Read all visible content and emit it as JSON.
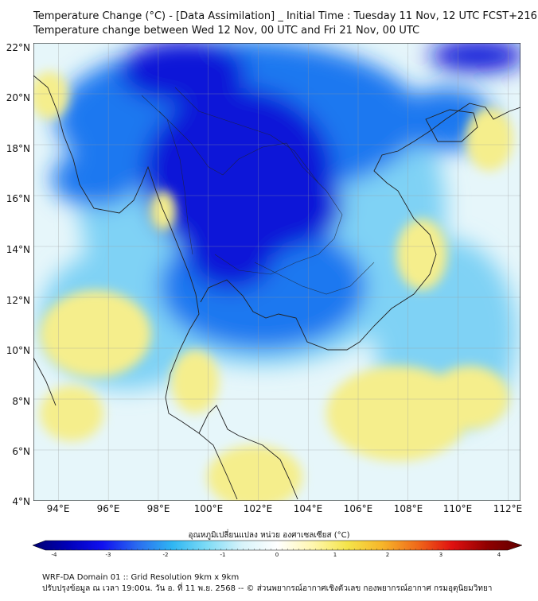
{
  "title": {
    "line1": "Temperature Change (°C) - [Data Assimilation] _ Initial Time : Tuesday 11 Nov, 12 UTC FCST+216",
    "line2": "Temperature change between Wed 12 Nov, 00 UTC and Fri 21 Nov, 00 UTC"
  },
  "map": {
    "lat_labels": [
      "22°N",
      "20°N",
      "18°N",
      "16°N",
      "14°N",
      "12°N",
      "10°N",
      "8°N",
      "6°N",
      "4°N"
    ],
    "lon_labels": [
      "94°E",
      "96°E",
      "98°E",
      "100°E",
      "102°E",
      "104°E",
      "106°E",
      "108°E",
      "110°E",
      "112°E"
    ],
    "lat_range": [
      4,
      22
    ],
    "lon_range": [
      93,
      112.5
    ],
    "grid": true,
    "colors": {
      "strong_cooling": "#0a14d8",
      "cooling": "#1e78f0",
      "mild_cooling": "#7fd2f5",
      "neutral": "#e6f6fa",
      "warming": "#f5ee8c",
      "coastline": "#222222"
    }
  },
  "colorbar": {
    "title": "อุณหภูมิเปลี่ยนแปลง หน่วย องศาเซลเซียส (°C)",
    "range": [
      -4,
      4
    ],
    "ticks": [
      "-4",
      "-3",
      "-2",
      "-1",
      "0",
      "1",
      "2",
      "3",
      "4"
    ],
    "stops": [
      "#000070",
      "#0000b8",
      "#1010f0",
      "#2a6cf0",
      "#2fb6f2",
      "#7fdcf6",
      "#d8f3fa",
      "#ffffff",
      "#fff7b0",
      "#f4e44a",
      "#f7b52a",
      "#f06a1a",
      "#e01010",
      "#900000",
      "#600000"
    ]
  },
  "footer": {
    "line1": "WRF-DA Domain 01 :: Grid Resolution 9km x 9km",
    "line2": "ปรับปรุงข้อมูล ณ เวลา 19:00น. วัน อ. ที่ 11 พ.ย. 2568 -- © ส่วนพยากรณ์อากาศเชิงตัวเลข กองพยากรณ์อากาศ กรมอุตุนิยมวิทยา"
  }
}
